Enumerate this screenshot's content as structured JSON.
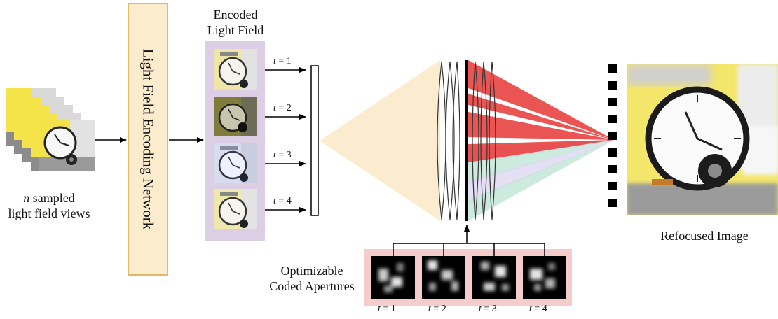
{
  "input": {
    "caption_var": "n",
    "caption_line1": " sampled",
    "caption_line2": "light field views"
  },
  "network": {
    "label": "Light Field Encoding Network"
  },
  "encoded": {
    "title_line1": "Encoded",
    "title_line2": "Light Field",
    "time_labels": [
      "t = 1",
      "t = 2",
      "t = 3",
      "t = 4"
    ]
  },
  "apertures": {
    "title_line1": "Optimizable",
    "title_line2": "Coded Apertures",
    "time_labels": [
      "t = 1",
      "t = 2",
      "t = 3",
      "t = 4"
    ]
  },
  "output": {
    "caption": "Refocused Image"
  },
  "colors": {
    "enc_fill": "#fbeccd",
    "enc_border": "#e1b866",
    "lf_panel": "#dccfe5",
    "ap_panel": "#f4cccc",
    "beam": "#fbecd0",
    "ray_red": "#e8413f",
    "ray_teal": "#bfe6d6",
    "ray_lav": "#ddd7ef"
  }
}
